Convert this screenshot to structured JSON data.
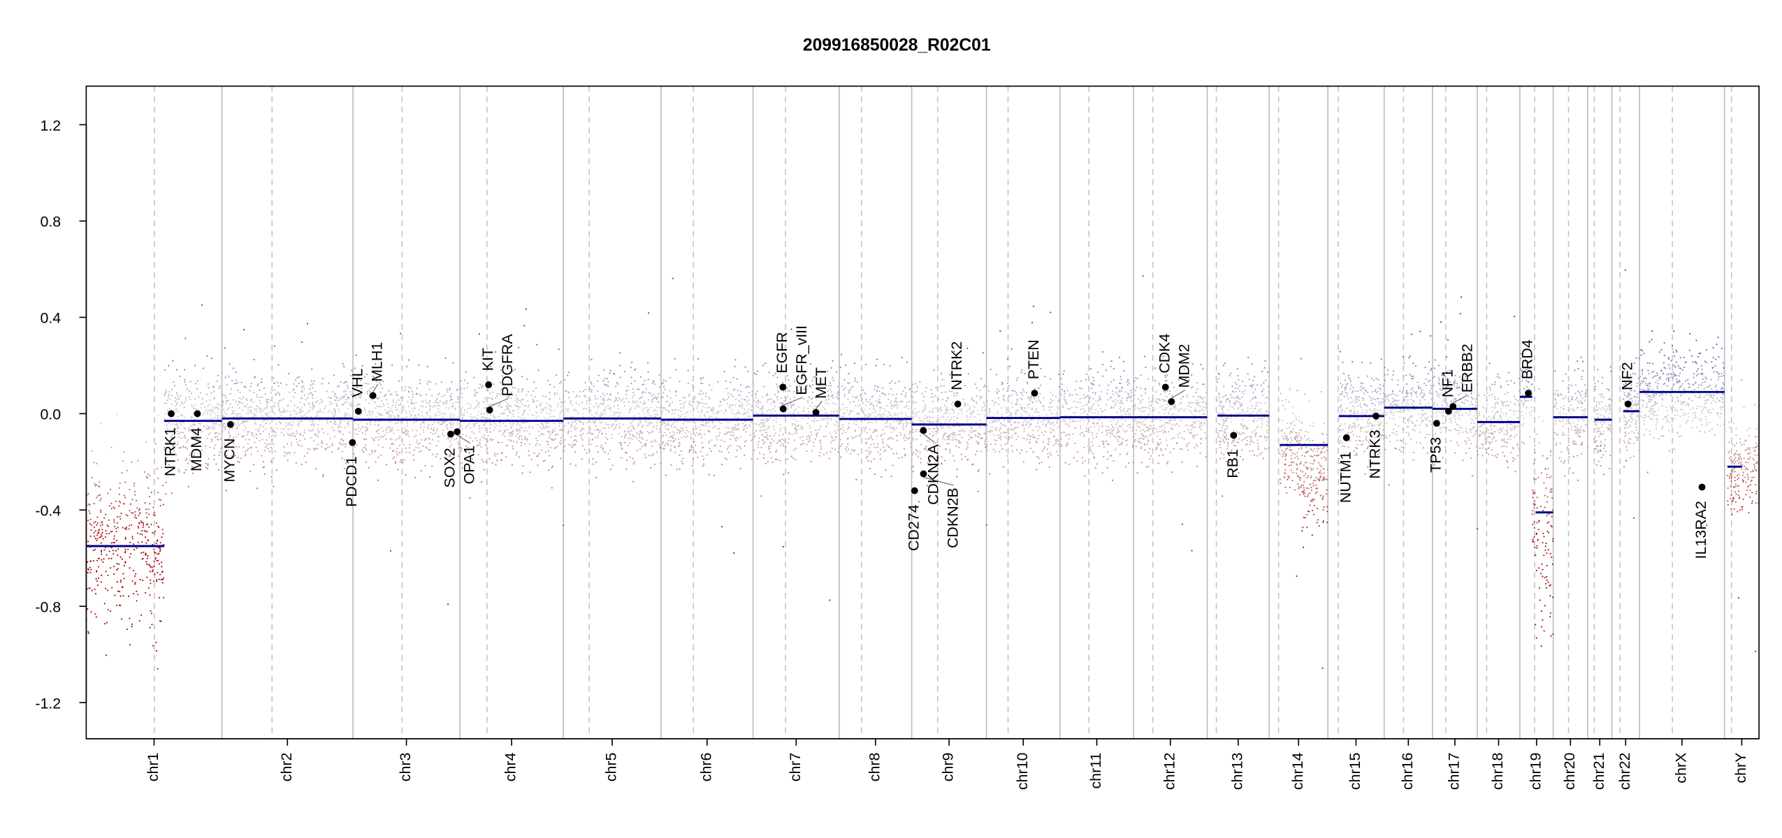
{
  "chart_data": {
    "type": "scatter",
    "title": "209916850028_R02C01",
    "xlabel": "",
    "ylabel": "",
    "ylim": [
      -1.35,
      1.36
    ],
    "yticks": [
      "1.2",
      "0.8",
      "0.4",
      "0.0",
      "-0.4",
      "-0.8",
      "-1.2"
    ],
    "ytick_values": [
      1.2,
      0.8,
      0.4,
      0.0,
      -0.4,
      -0.8,
      -1.2
    ],
    "colors": {
      "gain": "#3a3aa8",
      "neutral": "#d0d0d0",
      "loss": "#a80000",
      "segment": "#00008b",
      "gene_point": "#000000"
    },
    "chromosomes": [
      {
        "name": "chr1",
        "length_mb": 249,
        "centromere_mb": 125,
        "segments": [
          {
            "start": 0,
            "end": 143,
            "value": -0.55
          },
          {
            "start": 143,
            "end": 249,
            "value": -0.03
          }
        ]
      },
      {
        "name": "chr2",
        "length_mb": 243,
        "centromere_mb": 93,
        "segments": [
          {
            "start": 0,
            "end": 243,
            "value": -0.02
          }
        ]
      },
      {
        "name": "chr3",
        "length_mb": 198,
        "centromere_mb": 91,
        "segments": [
          {
            "start": 0,
            "end": 198,
            "value": -0.025
          }
        ]
      },
      {
        "name": "chr4",
        "length_mb": 191,
        "centromere_mb": 50,
        "segments": [
          {
            "start": 0,
            "end": 191,
            "value": -0.03
          }
        ]
      },
      {
        "name": "chr5",
        "length_mb": 181,
        "centromere_mb": 48,
        "segments": [
          {
            "start": 0,
            "end": 181,
            "value": -0.02
          }
        ]
      },
      {
        "name": "chr6",
        "length_mb": 171,
        "centromere_mb": 60,
        "segments": [
          {
            "start": 0,
            "end": 171,
            "value": -0.025
          }
        ]
      },
      {
        "name": "chr7",
        "length_mb": 159,
        "centromere_mb": 60,
        "segments": [
          {
            "start": 0,
            "end": 159,
            "value": -0.008
          }
        ]
      },
      {
        "name": "chr8",
        "length_mb": 146,
        "centromere_mb": 45,
        "segments": [
          {
            "start": 0,
            "end": 146,
            "value": -0.022
          }
        ]
      },
      {
        "name": "chr9",
        "length_mb": 141,
        "centromere_mb": 49,
        "segments": [
          {
            "start": 0,
            "end": 141,
            "value": -0.045
          }
        ]
      },
      {
        "name": "chr10",
        "length_mb": 136,
        "centromere_mb": 40,
        "segments": [
          {
            "start": 0,
            "end": 136,
            "value": -0.018
          }
        ]
      },
      {
        "name": "chr11",
        "length_mb": 135,
        "centromere_mb": 53,
        "segments": [
          {
            "start": 0,
            "end": 135,
            "value": -0.015
          }
        ]
      },
      {
        "name": "chr12",
        "length_mb": 134,
        "centromere_mb": 35,
        "segments": [
          {
            "start": 0,
            "end": 134,
            "value": -0.015
          }
        ]
      },
      {
        "name": "chr13",
        "length_mb": 115,
        "centromere_mb": 17,
        "segments": [
          {
            "start": 19,
            "end": 115,
            "value": -0.008
          }
        ]
      },
      {
        "name": "chr14",
        "length_mb": 107,
        "centromere_mb": 17,
        "segments": [
          {
            "start": 19,
            "end": 107,
            "value": -0.13
          }
        ]
      },
      {
        "name": "chr15",
        "length_mb": 103,
        "centromere_mb": 19,
        "segments": [
          {
            "start": 20,
            "end": 103,
            "value": -0.01
          }
        ]
      },
      {
        "name": "chr16",
        "length_mb": 90,
        "centromere_mb": 36,
        "segments": [
          {
            "start": 0,
            "end": 90,
            "value": 0.025
          }
        ]
      },
      {
        "name": "chr17",
        "length_mb": 81,
        "centromere_mb": 24,
        "segments": [
          {
            "start": 0,
            "end": 81,
            "value": 0.02
          }
        ]
      },
      {
        "name": "chr18",
        "length_mb": 78,
        "centromere_mb": 17,
        "segments": [
          {
            "start": 0,
            "end": 78,
            "value": -0.035
          }
        ]
      },
      {
        "name": "chr19",
        "length_mb": 59,
        "centromere_mb": 26,
        "segments": [
          {
            "start": 0,
            "end": 22,
            "value": 0.07
          },
          {
            "start": 28,
            "end": 59,
            "value": -0.41
          }
        ]
      },
      {
        "name": "chr20",
        "length_mb": 63,
        "centromere_mb": 28,
        "segments": [
          {
            "start": 0,
            "end": 63,
            "value": -0.015
          }
        ]
      },
      {
        "name": "chr21",
        "length_mb": 48,
        "centromere_mb": 13,
        "segments": [
          {
            "start": 14,
            "end": 48,
            "value": -0.025
          }
        ]
      },
      {
        "name": "chr22",
        "length_mb": 51,
        "centromere_mb": 15,
        "segments": [
          {
            "start": 21,
            "end": 51,
            "value": 0.01
          }
        ]
      },
      {
        "name": "chrX",
        "length_mb": 155,
        "centromere_mb": 60,
        "segments": [
          {
            "start": 0,
            "end": 155,
            "value": 0.09
          }
        ]
      },
      {
        "name": "chrY",
        "length_mb": 59,
        "centromere_mb": 12,
        "segments": [
          {
            "start": 5,
            "end": 30,
            "value": -0.22
          }
        ]
      }
    ],
    "genes": [
      {
        "name": "NTRK1",
        "chr": "chr1",
        "pos_mb": 156,
        "value": 0.0,
        "label": "below"
      },
      {
        "name": "MDM4",
        "chr": "chr1",
        "pos_mb": 204,
        "value": 0.0,
        "label": "below"
      },
      {
        "name": "MYCN",
        "chr": "chr2",
        "pos_mb": 16,
        "value": -0.045,
        "label": "below"
      },
      {
        "name": "PDCD1",
        "chr": "chr2",
        "pos_mb": 242,
        "value": -0.12,
        "label": "below"
      },
      {
        "name": "VHL",
        "chr": "chr3",
        "pos_mb": 10,
        "value": 0.01,
        "label": "above"
      },
      {
        "name": "MLH1",
        "chr": "chr3",
        "pos_mb": 37,
        "value": 0.075,
        "label": "above"
      },
      {
        "name": "SOX2",
        "chr": "chr3",
        "pos_mb": 181,
        "value": -0.085,
        "label": "below"
      },
      {
        "name": "OPA1",
        "chr": "chr3",
        "pos_mb": 193,
        "value": -0.075,
        "label": "below"
      },
      {
        "name": "KIT",
        "chr": "chr4",
        "pos_mb": 53,
        "value": 0.12,
        "label": "above"
      },
      {
        "name": "PDGFRA",
        "chr": "chr4",
        "pos_mb": 55,
        "value": 0.015,
        "label": "above"
      },
      {
        "name": "EGFR",
        "chr": "chr7",
        "pos_mb": 55,
        "value": 0.11,
        "label": "above"
      },
      {
        "name": "EGFR_vIII",
        "chr": "chr7",
        "pos_mb": 55.5,
        "value": 0.02,
        "label": "above"
      },
      {
        "name": "MET",
        "chr": "chr7",
        "pos_mb": 116,
        "value": 0.005,
        "label": "above"
      },
      {
        "name": "CD274",
        "chr": "chr9",
        "pos_mb": 5.5,
        "value": -0.32,
        "label": "below"
      },
      {
        "name": "CDKN2A",
        "chr": "chr9",
        "pos_mb": 22,
        "value": -0.07,
        "label": "below"
      },
      {
        "name": "CDKN2B",
        "chr": "chr9",
        "pos_mb": 22.3,
        "value": -0.25,
        "label": "below"
      },
      {
        "name": "NTRK2",
        "chr": "chr9",
        "pos_mb": 87,
        "value": 0.04,
        "label": "above"
      },
      {
        "name": "PTEN",
        "chr": "chr10",
        "pos_mb": 89,
        "value": 0.085,
        "label": "above"
      },
      {
        "name": "CDK4",
        "chr": "chr12",
        "pos_mb": 58,
        "value": 0.11,
        "label": "above"
      },
      {
        "name": "MDM2",
        "chr": "chr12",
        "pos_mb": 69,
        "value": 0.05,
        "label": "above"
      },
      {
        "name": "RB1",
        "chr": "chr13",
        "pos_mb": 49,
        "value": -0.09,
        "label": "below"
      },
      {
        "name": "NUTM1",
        "chr": "chr15",
        "pos_mb": 34,
        "value": -0.1,
        "label": "below"
      },
      {
        "name": "NTRK3",
        "chr": "chr15",
        "pos_mb": 88,
        "value": -0.01,
        "label": "below"
      },
      {
        "name": "TP53",
        "chr": "chr17",
        "pos_mb": 7.5,
        "value": -0.04,
        "label": "below"
      },
      {
        "name": "NF1",
        "chr": "chr17",
        "pos_mb": 29,
        "value": 0.01,
        "label": "above"
      },
      {
        "name": "ERBB2",
        "chr": "chr17",
        "pos_mb": 37,
        "value": 0.03,
        "label": "above"
      },
      {
        "name": "BRD4",
        "chr": "chr19",
        "pos_mb": 15,
        "value": 0.085,
        "label": "above"
      },
      {
        "name": "NF2",
        "chr": "chr22",
        "pos_mb": 30,
        "value": 0.04,
        "label": "above"
      },
      {
        "name": "IL13RA2",
        "chr": "chrX",
        "pos_mb": 114,
        "value": -0.305,
        "label": "below"
      }
    ]
  }
}
